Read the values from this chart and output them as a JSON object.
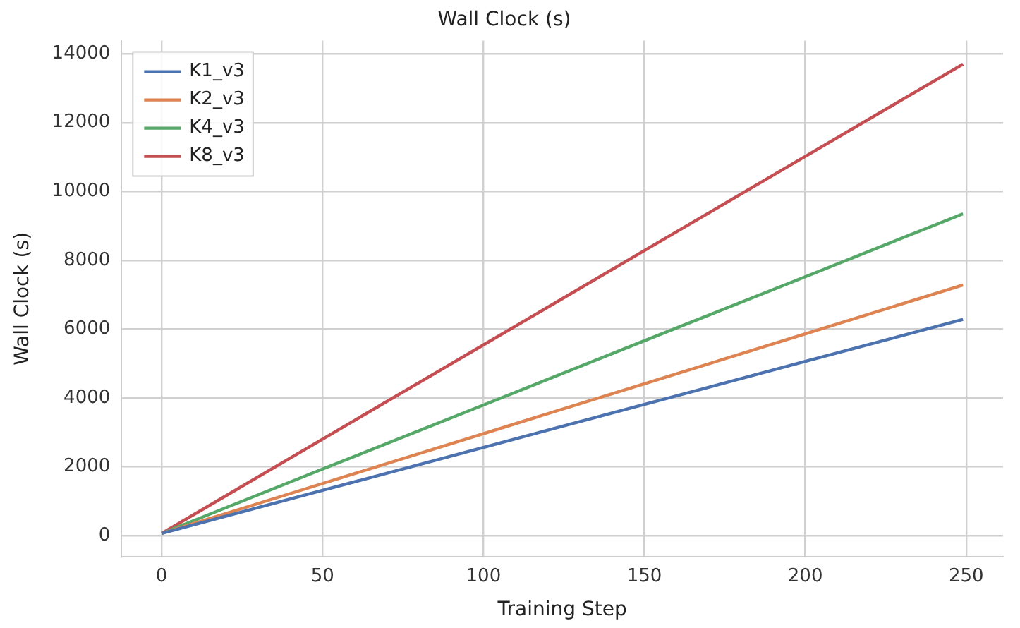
{
  "chart_data": {
    "type": "line",
    "title": "Wall Clock (s)",
    "xlabel": "Training Step",
    "ylabel": "Wall Clock (s)",
    "x": [
      0,
      50,
      100,
      150,
      200,
      249
    ],
    "series": [
      {
        "name": "K1_v3",
        "color": "#4c72b0",
        "values": [
          60,
          1310,
          2560,
          3810,
          5060,
          6280
        ]
      },
      {
        "name": "K2_v3",
        "color": "#dd8452",
        "values": [
          60,
          1510,
          2960,
          4410,
          5860,
          7280
        ]
      },
      {
        "name": "K4_v3",
        "color": "#55a868",
        "values": [
          60,
          1930,
          3790,
          5660,
          7520,
          9350
        ]
      },
      {
        "name": "K8_v3",
        "color": "#c44e52",
        "values": [
          60,
          2800,
          5540,
          8280,
          11020,
          13700
        ]
      }
    ],
    "xlim": [
      -12.45,
      261.45
    ],
    "xticks": [
      0,
      50,
      100,
      150,
      200,
      250
    ],
    "ylim": [
      -622,
      14382
    ],
    "yticks": [
      0,
      2000,
      4000,
      6000,
      8000,
      10000,
      12000,
      14000
    ],
    "grid": true,
    "legend": "top left",
    "marker": "none",
    "line_style": "solid"
  }
}
